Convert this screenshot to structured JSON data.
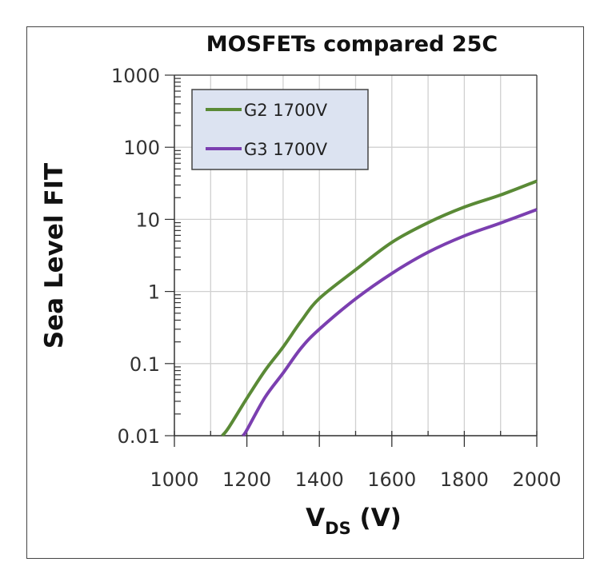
{
  "chart_data": {
    "type": "line",
    "title": "MOSFETs compared 25C",
    "xlabel_main": "V",
    "xlabel_sub": "DS",
    "xlabel_unit": " (V)",
    "ylabel": "Sea Level FIT",
    "xlim": [
      1000,
      2000
    ],
    "ylim": [
      0.01,
      1000
    ],
    "yscale": "log",
    "grid": true,
    "legend_position": "top-left",
    "x_tick_labels": [
      "1000",
      "1200",
      "1400",
      "1600",
      "1800",
      "2000"
    ],
    "y_tick_labels": [
      "1000",
      "100",
      "10",
      "1",
      "0.1",
      "0.01"
    ],
    "series": [
      {
        "name": "G2 1700V",
        "color": "#5a8a36",
        "x": [
          1132,
          1150,
          1200,
          1250,
          1300,
          1350,
          1400,
          1500,
          1600,
          1700,
          1800,
          1900,
          2000
        ],
        "y": [
          0.01,
          0.013,
          0.033,
          0.08,
          0.17,
          0.39,
          0.8,
          2.0,
          4.8,
          9.0,
          14.8,
          21.8,
          34
        ]
      },
      {
        "name": "G3 1700V",
        "color": "#7b3fb0",
        "x": [
          1189,
          1200,
          1250,
          1300,
          1350,
          1400,
          1500,
          1600,
          1700,
          1800,
          1900,
          2000
        ],
        "y": [
          0.01,
          0.012,
          0.034,
          0.074,
          0.165,
          0.3,
          0.79,
          1.78,
          3.5,
          5.9,
          8.9,
          13.7
        ]
      }
    ]
  }
}
